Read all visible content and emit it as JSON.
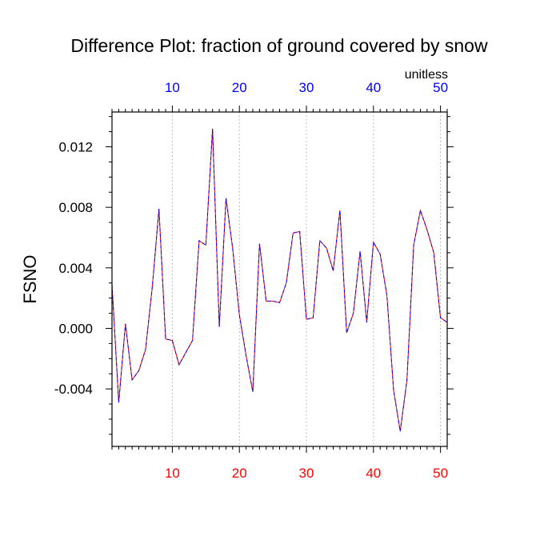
{
  "chart_data": {
    "type": "line",
    "title": "Difference Plot: fraction of ground covered by snow",
    "units": "unitless",
    "ylabel": "FSNO",
    "xlabel": "",
    "xlim": [
      1,
      51
    ],
    "ylim": [
      -0.0078,
      0.0143
    ],
    "x_ticks": [
      10,
      20,
      30,
      40,
      50
    ],
    "x_tick_labels": [
      "10",
      "20",
      "30",
      "40",
      "50"
    ],
    "y_ticks": [
      -0.004,
      0.0,
      0.004,
      0.008,
      0.012
    ],
    "y_tick_labels": [
      "-0.004",
      "0.000",
      "0.004",
      "0.008",
      "0.012"
    ],
    "top_tick_color": "#0000ff",
    "bottom_tick_color": "#ff0000",
    "grid": "vertical dotted",
    "series": [
      {
        "color_a": "#ff0000",
        "color_b": "#0000ff",
        "x": [
          1,
          2,
          3,
          4,
          5,
          6,
          7,
          8,
          9,
          10,
          11,
          12,
          13,
          14,
          15,
          16,
          17,
          18,
          19,
          20,
          21,
          22,
          23,
          24,
          25,
          26,
          27,
          28,
          29,
          30,
          31,
          32,
          33,
          34,
          35,
          36,
          37,
          38,
          39,
          40,
          41,
          42,
          43,
          44,
          45,
          46,
          47,
          48,
          49,
          50,
          51
        ],
        "values": [
          0.0029,
          -0.0049,
          0.0003,
          -0.0034,
          -0.0028,
          -0.0014,
          0.0027,
          0.0079,
          -0.0007,
          -0.0008,
          -0.0024,
          -0.0016,
          -0.0008,
          0.0058,
          0.0055,
          0.0132,
          0.0001,
          0.0086,
          0.0053,
          0.0009,
          -0.0018,
          -0.0042,
          0.0056,
          0.0018,
          0.0018,
          0.0017,
          0.003,
          0.0063,
          0.0064,
          0.0006,
          0.0007,
          0.0058,
          0.0053,
          0.0038,
          0.0078,
          -0.0003,
          0.001,
          0.0051,
          0.0004,
          0.0057,
          0.0049,
          0.0022,
          -0.0041,
          -0.0068,
          -0.0034,
          0.0055,
          0.0078,
          0.0065,
          0.005,
          0.0007,
          0.0004
        ]
      }
    ]
  }
}
